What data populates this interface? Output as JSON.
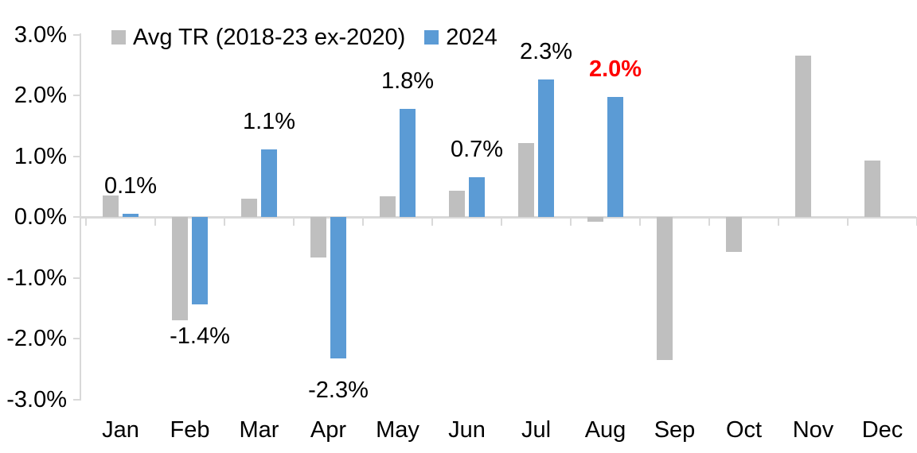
{
  "chart_data": {
    "type": "bar",
    "title": "",
    "xlabel": "",
    "ylabel": "",
    "categories": [
      "Jan",
      "Feb",
      "Mar",
      "Apr",
      "May",
      "Jun",
      "Jul",
      "Aug",
      "Sep",
      "Oct",
      "Nov",
      "Dec"
    ],
    "series": [
      {
        "name": "Avg TR (2018-23 ex-2020)",
        "color": "#BFBFBF",
        "values": [
          0.35,
          -1.7,
          0.3,
          -0.67,
          0.34,
          0.43,
          1.22,
          -0.08,
          -2.35,
          -0.57,
          2.65,
          0.93
        ]
      },
      {
        "name": "2024",
        "color": "#5B9BD5",
        "values": [
          0.05,
          -1.44,
          1.11,
          -2.33,
          1.78,
          0.66,
          2.26,
          1.97,
          null,
          null,
          null,
          null
        ]
      }
    ],
    "data_labels": [
      {
        "category": "Jan",
        "text": "0.1%",
        "color": "#000000",
        "bold": false
      },
      {
        "category": "Feb",
        "text": "-1.4%",
        "color": "#000000",
        "bold": false
      },
      {
        "category": "Mar",
        "text": "1.1%",
        "color": "#000000",
        "bold": false
      },
      {
        "category": "Apr",
        "text": "-2.3%",
        "color": "#000000",
        "bold": false
      },
      {
        "category": "May",
        "text": "1.8%",
        "color": "#000000",
        "bold": false
      },
      {
        "category": "Jun",
        "text": "0.7%",
        "color": "#000000",
        "bold": false
      },
      {
        "category": "Jul",
        "text": "2.3%",
        "color": "#000000",
        "bold": false
      },
      {
        "category": "Aug",
        "text": "2.0%",
        "color": "#FF0000",
        "bold": true
      }
    ],
    "y_axis": {
      "tick_labels": [
        "3.0%",
        "2.0%",
        "1.0%",
        "0.0%",
        "-1.0%",
        "-2.0%",
        "-3.0%"
      ],
      "tick_values": [
        3,
        2,
        1,
        0,
        -1,
        -2,
        -3
      ],
      "min": -3,
      "max": 3
    },
    "legend_position": "top",
    "grid": false,
    "colors": {
      "axis": "#D9D9D9",
      "bar_gray": "#BFBFBF",
      "bar_blue": "#5B9BD5",
      "highlight_red": "#FF0000",
      "text": "#000000"
    }
  }
}
